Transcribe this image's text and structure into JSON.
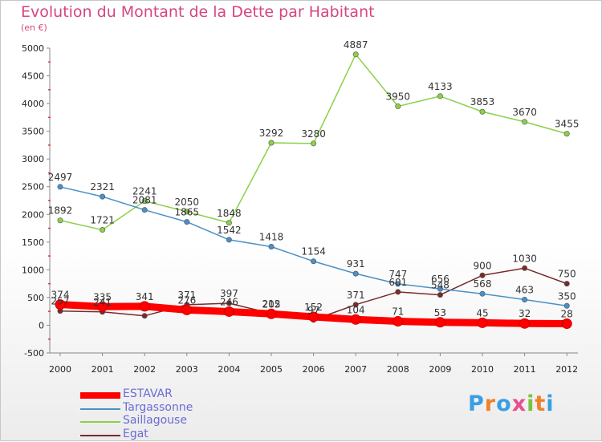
{
  "header": {
    "title": "Evolution du Montant de la Dette par Habitant",
    "subtitle": "(en €)"
  },
  "logo": {
    "text": "Proxiti",
    "letter_colors": [
      "#3a9ee4",
      "#f0812a",
      "#3a9ee4",
      "#e94e8e",
      "#7cc242",
      "#f0812a",
      "#3a9ee4"
    ]
  },
  "chart_data": {
    "type": "line",
    "title": "Evolution du Montant de la Dette par Habitant",
    "subtitle": "(en €)",
    "xlabel": "",
    "ylabel": "",
    "x": [
      "2000",
      "2001",
      "2002",
      "2003",
      "2004",
      "2005",
      "2006",
      "2007",
      "2008",
      "2009",
      "2010",
      "2011",
      "2012"
    ],
    "ylim": [
      -500,
      5000
    ],
    "yticks": [
      "-500",
      "0",
      "500",
      "1000",
      "1500",
      "2000",
      "2500",
      "3000",
      "3500",
      "4000",
      "4500",
      "5000"
    ],
    "grid": false,
    "legend_position": "bottom-left",
    "series": [
      {
        "name": "ESTAVAR",
        "color": "#ff0000",
        "values": [
          374,
          335,
          341,
          276,
          246,
          205,
          152,
          104,
          71,
          53,
          45,
          32,
          28
        ],
        "labels": [
          "374",
          "335",
          "341",
          "276",
          "246",
          "205",
          "152",
          "104",
          "71",
          "53",
          "45",
          "32",
          "28"
        ]
      },
      {
        "name": "Targassonne",
        "color": "#4a90c8",
        "values": [
          2497,
          2321,
          2081,
          1865,
          1542,
          1418,
          1154,
          931,
          747,
          656,
          568,
          463,
          350
        ],
        "labels": [
          "2497",
          "2321",
          "2081",
          "1865",
          "1542",
          "1418",
          "1154",
          "931",
          "747",
          "656",
          "568",
          "463",
          "350"
        ]
      },
      {
        "name": "Saillagouse",
        "color": "#8bd04a",
        "values": [
          1892,
          1721,
          2241,
          2050,
          1848,
          3292,
          3280,
          4887,
          3950,
          4133,
          3853,
          3670,
          3455
        ],
        "labels": [
          "1892",
          "1721",
          "2241",
          "2050",
          "1848",
          "3292",
          "3280",
          "4887",
          "3950",
          "4133",
          "3853",
          "3670",
          "3455"
        ]
      },
      {
        "name": "Egat",
        "color": "#7a2a2a",
        "values": [
          257,
          241,
          170,
          371,
          397,
          212,
          97,
          371,
          601,
          548,
          900,
          1030,
          750
        ],
        "labels": [
          "257",
          "241",
          "",
          "371",
          "397",
          "212",
          "97",
          "371",
          "601",
          "548",
          "900",
          "1030",
          "750"
        ]
      }
    ]
  }
}
